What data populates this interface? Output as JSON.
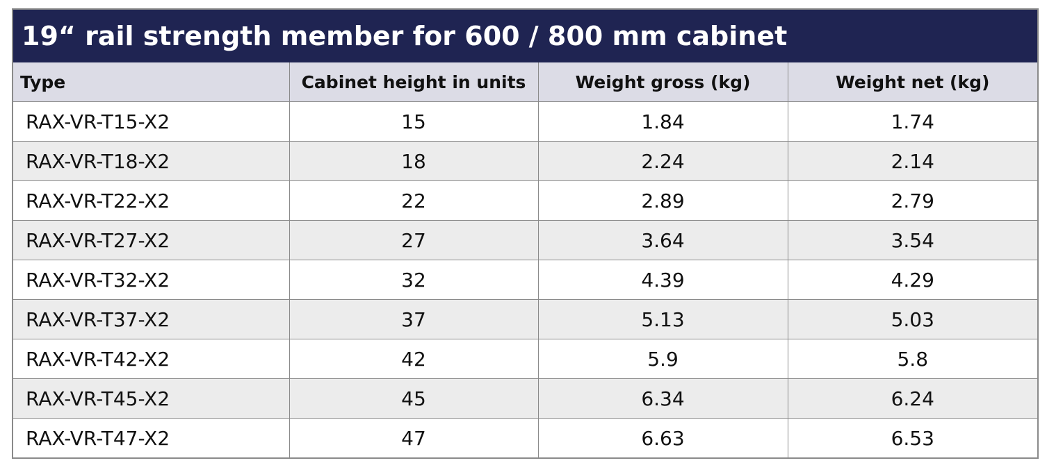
{
  "title": "19“ rail strength member for 600 / 800 mm cabinet",
  "table": {
    "header": [
      "Type",
      "Cabinet height in units",
      "Weight gross (kg)",
      "Weight net (kg)"
    ],
    "rows": [
      [
        "RAX-VR-T15-X2",
        "15",
        "1.84",
        "1.74"
      ],
      [
        "RAX-VR-T18-X2",
        "18",
        "2.24",
        "2.14"
      ],
      [
        "RAX-VR-T22-X2",
        "22",
        "2.89",
        "2.79"
      ],
      [
        "RAX-VR-T27-X2",
        "27",
        "3.64",
        "3.54"
      ],
      [
        "RAX-VR-T32-X2",
        "32",
        "4.39",
        "4.29"
      ],
      [
        "RAX-VR-T37-X2",
        "37",
        "5.13",
        "5.03"
      ],
      [
        "RAX-VR-T42-X2",
        "42",
        "5.9",
        "5.8"
      ],
      [
        "RAX-VR-T45-X2",
        "45",
        "6.34",
        "6.24"
      ],
      [
        "RAX-VR-T47-X2",
        "47",
        "6.63",
        "6.53"
      ]
    ]
  }
}
